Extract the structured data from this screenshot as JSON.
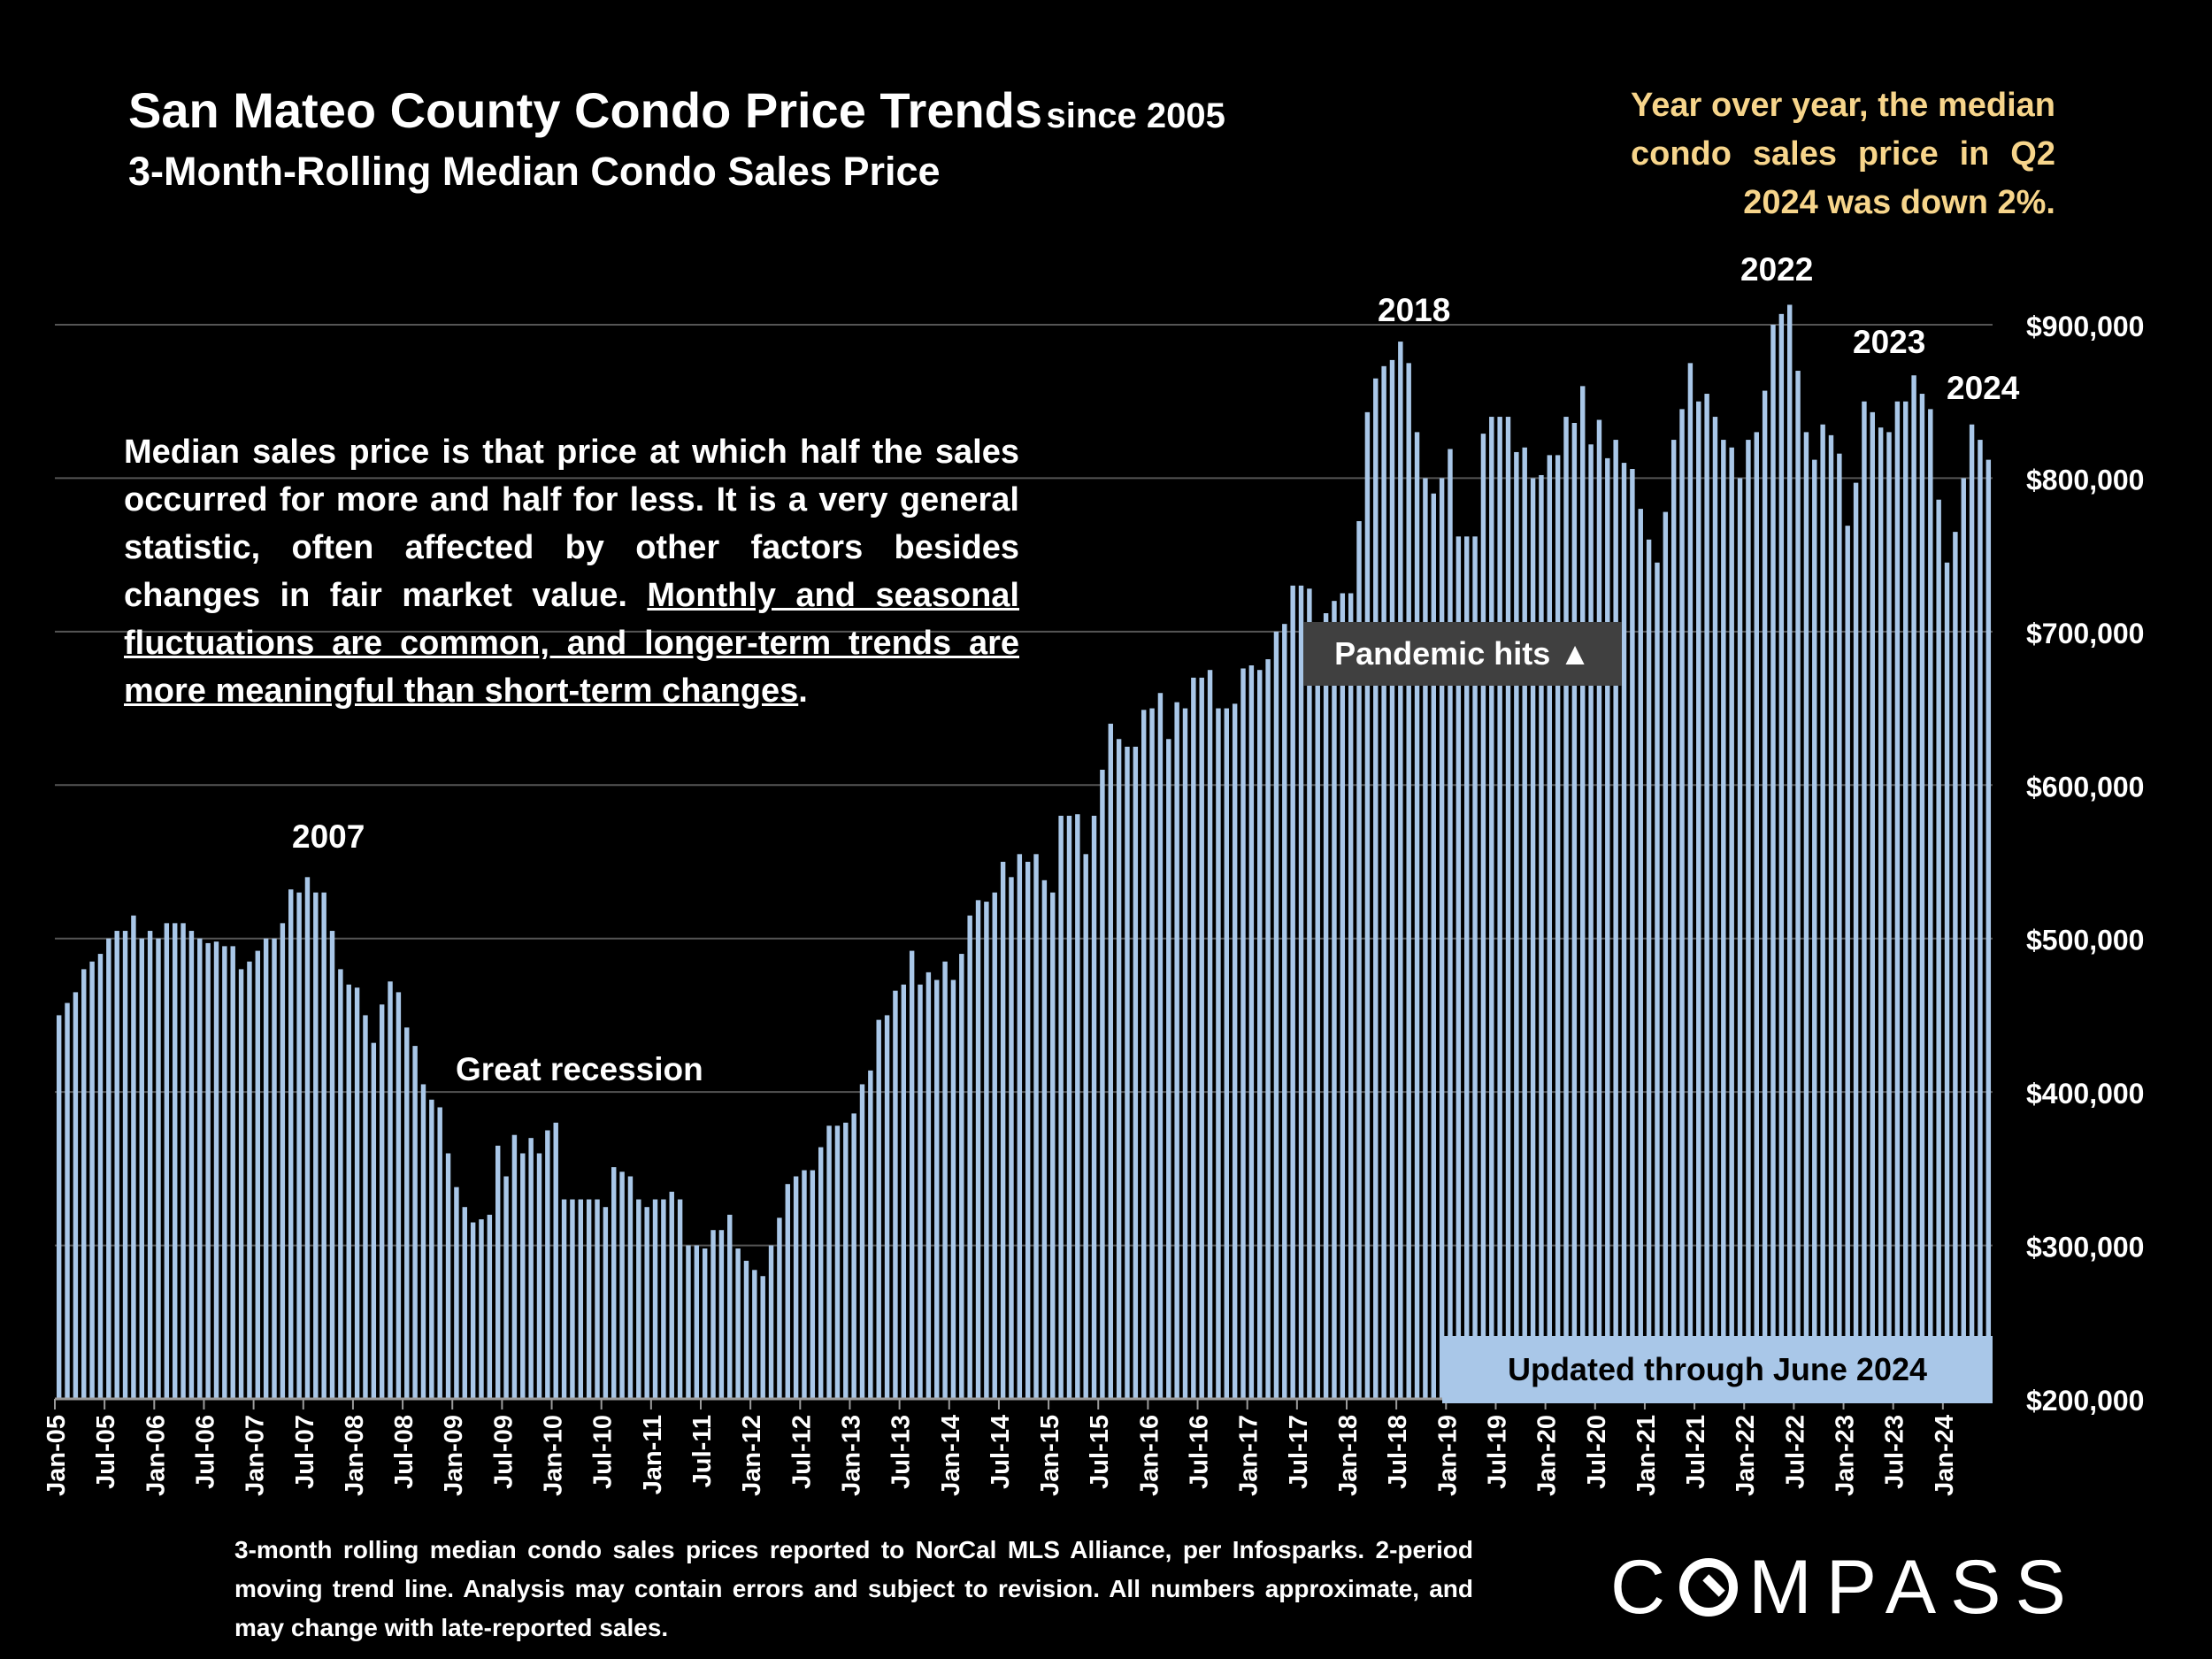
{
  "title": {
    "main": "San Mateo County Condo Price Trends",
    "since": "since 2005",
    "subtitle": "3-Month-Rolling Median Condo Sales Price"
  },
  "yoy_note": "Year over year, the median condo sales price in Q2 2024 was down 2%.",
  "explanation": {
    "plain": "Median sales price is that price at which half the sales occurred for more and half for less. It is a very general statistic, often affected by other factors besides changes in fair market value. ",
    "underlined": "Monthly and seasonal fluctuations are common, and longer-term trends are more meaningful than short-term changes",
    "end": "."
  },
  "annotations": {
    "y2007": "2007",
    "recession": "Great recession",
    "y2018": "2018",
    "y2022": "2022",
    "y2023": "2023",
    "y2024": "2024"
  },
  "pandemic_label": "Pandemic hits ▲",
  "updated_label": "Updated through June 2024",
  "footnote": "3-month rolling median condo sales prices reported to NorCal MLS Alliance, per Infosparks. 2-period moving trend line. Analysis may contain errors and subject to revision. All numbers approximate, and may change with late-reported sales.",
  "logo_text": {
    "c": "C",
    "rest": "MPASS"
  },
  "colors": {
    "bar": "#a9c7e8",
    "background": "#000000",
    "grid": "#555555",
    "yoy_text": "#f7d58b",
    "pandemic_box": "#404040"
  },
  "chart_data": {
    "type": "bar",
    "ylabel": "",
    "ylim": [
      200000,
      900000
    ],
    "y_ticks": [
      "$200,000",
      "$300,000",
      "$400,000",
      "$500,000",
      "$600,000",
      "$700,000",
      "$800,000",
      "$900,000"
    ],
    "y_axis_position": "right",
    "x_tick_labels": [
      "Jan-05",
      "Jul-05",
      "Jan-06",
      "Jul-06",
      "Jan-07",
      "Jul-07",
      "Jan-08",
      "Jul-08",
      "Jan-09",
      "Jul-09",
      "Jan-10",
      "Jul-10",
      "Jan-11",
      "Jul-11",
      "Jan-12",
      "Jul-12",
      "Jan-13",
      "Jul-13",
      "Jan-14",
      "Jul-14",
      "Jan-15",
      "Jul-15",
      "Jan-16",
      "Jul-16",
      "Jan-17",
      "Jul-17",
      "Jan-18",
      "Jul-18",
      "Jan-19",
      "Jul-19",
      "Jan-20",
      "Jul-20",
      "Jan-21",
      "Jul-21",
      "Jan-22",
      "Jul-22",
      "Jan-23",
      "Jul-23",
      "Jan-24"
    ],
    "x_start": "Jan-05",
    "x_end": "Jun-24",
    "grid": true,
    "series": [
      {
        "values": [
          450000,
          458000,
          465000,
          480000,
          485000,
          490000,
          500000,
          505000,
          505000,
          515000,
          500000,
          505000,
          500000,
          510000,
          510000,
          510000,
          505000,
          500000,
          497000,
          498000,
          495000,
          495000,
          480000,
          485000,
          492000,
          500000,
          500000,
          510000,
          532000,
          530000,
          540000,
          530000,
          530000,
          505000,
          480000,
          470000,
          468000,
          450000,
          432000,
          457000,
          472000,
          465000,
          442000,
          430000,
          405000,
          395000,
          390000,
          360000,
          338000,
          325000,
          315000,
          317000,
          320000,
          365000,
          345000,
          372000,
          360000,
          370000,
          360000,
          375000,
          380000,
          330000,
          330000,
          330000,
          330000,
          330000,
          325000,
          351000,
          348000,
          345000,
          330000,
          325000,
          330000,
          330000,
          335000,
          330000,
          300000,
          300000,
          298000,
          310000,
          310000,
          320000,
          298000,
          290000,
          284000,
          280000,
          300000,
          318000,
          340000,
          345000,
          349000,
          349000,
          364000,
          378000,
          378000,
          380000,
          386000,
          405000,
          414000,
          447000,
          450000,
          466000,
          470000,
          492000,
          470000,
          478000,
          473000,
          485000,
          473000,
          490000,
          515000,
          525000,
          524000,
          530000,
          550000,
          540000,
          555000,
          550000,
          555000,
          538000,
          530000,
          580000,
          580000,
          581000,
          555000,
          580000,
          610000,
          640000,
          630000,
          625000,
          625000,
          649000,
          650000,
          660000,
          630000,
          654000,
          650000,
          670000,
          670000,
          675000,
          650000,
          650000,
          653000,
          676000,
          678000,
          675000,
          682000,
          700000,
          705000,
          730000,
          730000,
          728000,
          700000,
          712000,
          720000,
          725000,
          725000,
          772000,
          843000,
          865000,
          873000,
          877000,
          889000,
          875000,
          830000,
          800000,
          790000,
          800000,
          819000,
          762000,
          762000,
          762000,
          829000,
          840000,
          840000,
          840000,
          817000,
          820000,
          800000,
          802000,
          815000,
          815000,
          840000,
          836000,
          860000,
          822000,
          838000,
          813000,
          825000,
          810000,
          806000,
          780000,
          760000,
          745000,
          778000,
          825000,
          845000,
          875000,
          850000,
          855000,
          840000,
          825000,
          820000,
          800000,
          825000,
          830000,
          857000,
          900000,
          907000,
          913000,
          870000,
          830000,
          812000,
          835000,
          828000,
          816000,
          769000,
          797000,
          850000,
          843000,
          833000,
          830000,
          850000,
          850000,
          867000,
          855000,
          845000,
          786000,
          745000,
          765000,
          800000,
          835000,
          825000,
          812000
        ]
      }
    ]
  }
}
